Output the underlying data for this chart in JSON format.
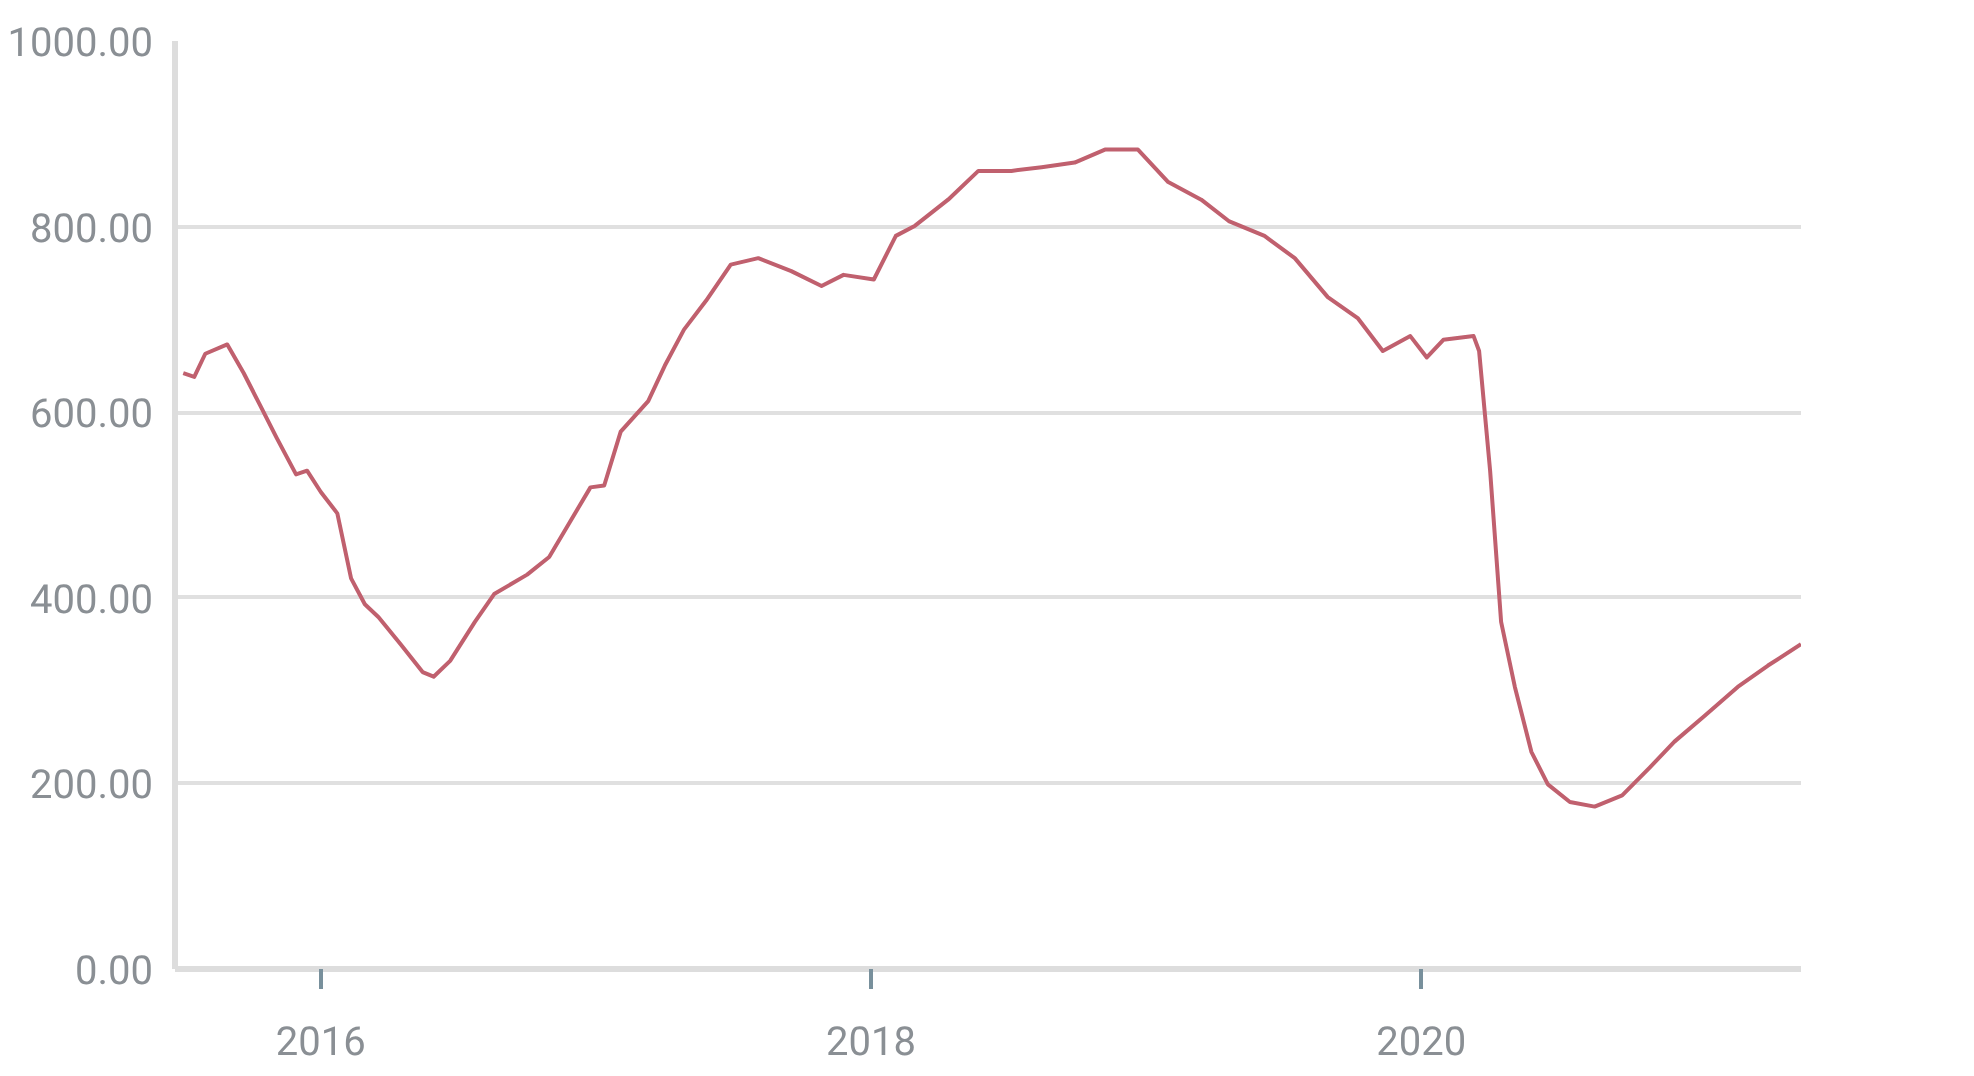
{
  "chart_data": {
    "type": "line",
    "x": [
      2015.5,
      2015.54,
      2015.58,
      2015.66,
      2015.72,
      2015.78,
      2015.84,
      2015.91,
      2015.95,
      2016.0,
      2016.06,
      2016.11,
      2016.16,
      2016.21,
      2016.29,
      2016.37,
      2016.41,
      2016.47,
      2016.56,
      2016.63,
      2016.75,
      2016.83,
      2016.9,
      2016.98,
      2017.03,
      2017.09,
      2017.19,
      2017.25,
      2017.32,
      2017.4,
      2017.49,
      2017.59,
      2017.71,
      2017.82,
      2017.9,
      2018.01,
      2018.09,
      2018.16,
      2018.28,
      2018.39,
      2018.51,
      2018.62,
      2018.74,
      2018.85,
      2018.97,
      2019.08,
      2019.2,
      2019.3,
      2019.43,
      2019.54,
      2019.66,
      2019.77,
      2019.86,
      2019.96,
      2020.02,
      2020.08,
      2020.19,
      2020.21,
      2020.25,
      2020.29,
      2020.34,
      2020.4,
      2020.46,
      2020.54,
      2020.63,
      2020.73,
      2020.83,
      2020.92,
      2021.03,
      2021.15,
      2021.26,
      2021.38
    ],
    "series": [
      {
        "color": "#c0606e",
        "values": [
          642,
          638,
          663,
          673,
          642,
          607,
          572,
          533,
          537,
          514,
          491,
          421,
          393,
          379,
          350,
          320,
          315,
          332,
          374,
          404,
          425,
          444,
          479,
          519,
          521,
          579,
          612,
          650,
          689,
          720,
          759,
          766,
          752,
          736,
          748,
          743,
          790,
          801,
          829,
          860,
          860,
          864,
          869,
          883,
          883,
          848,
          829,
          806,
          790,
          766,
          724,
          701,
          666,
          682,
          659,
          678,
          682,
          666,
          537,
          374,
          304,
          234,
          199,
          180,
          175,
          187,
          217,
          245,
          273,
          304,
          327,
          350
        ]
      }
    ],
    "xlim": [
      2015.47,
      2021.38
    ],
    "xticks": [
      2016,
      2018,
      2020
    ],
    "ylim": [
      0,
      1000
    ],
    "yticks": [
      {
        "value": 0,
        "label": "0.00"
      },
      {
        "value": 200,
        "label": "200.00"
      },
      {
        "value": 400,
        "label": "400.00"
      },
      {
        "value": 600,
        "label": "600.00"
      },
      {
        "value": 800,
        "label": "800.00"
      },
      {
        "value": 1000,
        "label": "1000.00"
      }
    ],
    "grid": "y",
    "marker": "none",
    "line_style": "solid"
  }
}
